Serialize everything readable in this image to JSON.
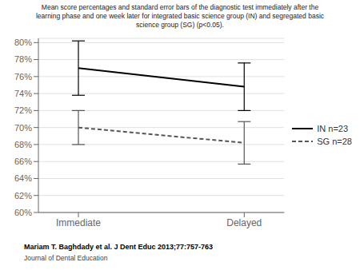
{
  "chart_data": {
    "type": "line",
    "title": "Mean score percentages and standard error bars of the diagnostic test immediately after the\nlearning phase and one week later for integrated basic science group (IN) and segregated basic\nscience group (SG) (p<0.05).",
    "annotations": [
      "Mariam T. Baghdady et al. J Dent Educ 2013;77:757-763",
      "Journal of Dental Education"
    ],
    "categories": [
      "Immediate",
      "Delayed"
    ],
    "series": [
      {
        "name": "IN n=23",
        "color": "#000000",
        "line_style": "solid",
        "values": [
          0.77,
          0.748
        ],
        "errors": [
          0.032,
          0.028
        ]
      },
      {
        "name": "SG n=28",
        "color": "#555555",
        "line_style": "dashed",
        "values": [
          0.7,
          0.682
        ],
        "errors": [
          0.02,
          0.025
        ]
      }
    ],
    "ylim": [
      0.6,
      0.805
    ],
    "yticks": [
      {
        "value": 0.6,
        "label": "60%"
      },
      {
        "value": 0.62,
        "label": "62%"
      },
      {
        "value": 0.64,
        "label": "64%"
      },
      {
        "value": 0.66,
        "label": "66%"
      },
      {
        "value": 0.68,
        "label": "68%"
      },
      {
        "value": 0.7,
        "label": "70%"
      },
      {
        "value": 0.72,
        "label": "72%"
      },
      {
        "value": 0.74,
        "label": "74%"
      },
      {
        "value": 0.76,
        "label": "76%"
      },
      {
        "value": 0.78,
        "label": "78%"
      },
      {
        "value": 0.8,
        "label": "80%"
      }
    ],
    "grid": true,
    "legend": "right"
  }
}
